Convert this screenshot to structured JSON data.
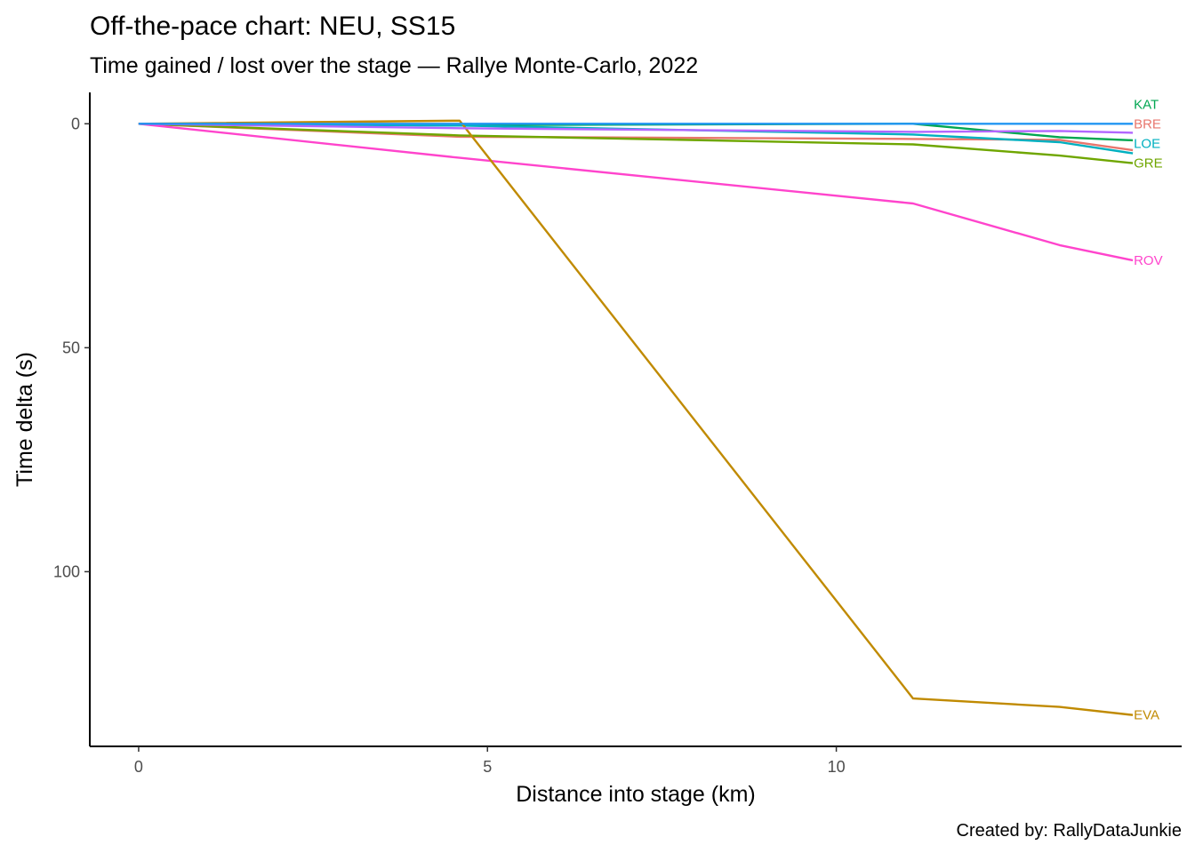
{
  "chart_data": {
    "type": "line",
    "title": "Off-the-pace chart: NEU, SS15",
    "subtitle": "Time gained / lost over the stage — Rallye Monte-Carlo, 2022",
    "xlabel": "Distance into stage (km)",
    "ylabel": "Time delta (s)",
    "caption": "Created by: RallyDataJunkie",
    "xlim": [
      -0.7,
      14.95
    ],
    "ylim": [
      139,
      -7
    ],
    "y_reversed": true,
    "xticks": [
      0,
      5,
      10
    ],
    "yticks": [
      0,
      50,
      100
    ],
    "legend": "none",
    "grid": false,
    "series": [
      {
        "name": "KAT",
        "color": "#00a651",
        "x": [
          0,
          4.6,
          11.1,
          13.2,
          14.25
        ],
        "y": [
          0,
          0.3,
          0,
          3,
          3.7
        ]
      },
      {
        "name": "BRE",
        "color": "#e8766d",
        "x": [
          0,
          4.6,
          11.1,
          13.2,
          14.25
        ],
        "y": [
          0,
          2.9,
          3.4,
          3.6,
          5.9
        ]
      },
      {
        "name": "LOE",
        "color": "#00b0c0",
        "x": [
          0,
          4.6,
          11.1,
          13.2,
          14.25
        ],
        "y": [
          0,
          0.4,
          2.4,
          4.1,
          6.6
        ]
      },
      {
        "name": "GRE",
        "color": "#6fa600",
        "x": [
          0,
          4.6,
          11.1,
          13.2,
          14.25
        ],
        "y": [
          0,
          2.6,
          4.6,
          7.1,
          8.8
        ]
      },
      {
        "name": "ROV",
        "color": "#ff44cc",
        "x": [
          0,
          4.6,
          11.1,
          13.2,
          14.25
        ],
        "y": [
          0,
          7.6,
          17.8,
          27.1,
          30.5
        ]
      },
      {
        "name": "EVA",
        "color": "#c08a00",
        "x": [
          0,
          4.6,
          11.1,
          13.2,
          14.25
        ],
        "y": [
          0,
          -0.7,
          128.3,
          130.2,
          132
        ]
      },
      {
        "name": "",
        "color": "#b266ff",
        "x": [
          0,
          4.6,
          11.1,
          13.2,
          14.25
        ],
        "y": [
          0,
          1,
          1.8,
          1.6,
          2
        ]
      },
      {
        "name": "",
        "color": "#2196f3",
        "x": [
          0,
          4.6,
          11.1,
          13.2,
          14.25
        ],
        "y": [
          0,
          0,
          0,
          0,
          0
        ]
      }
    ]
  }
}
